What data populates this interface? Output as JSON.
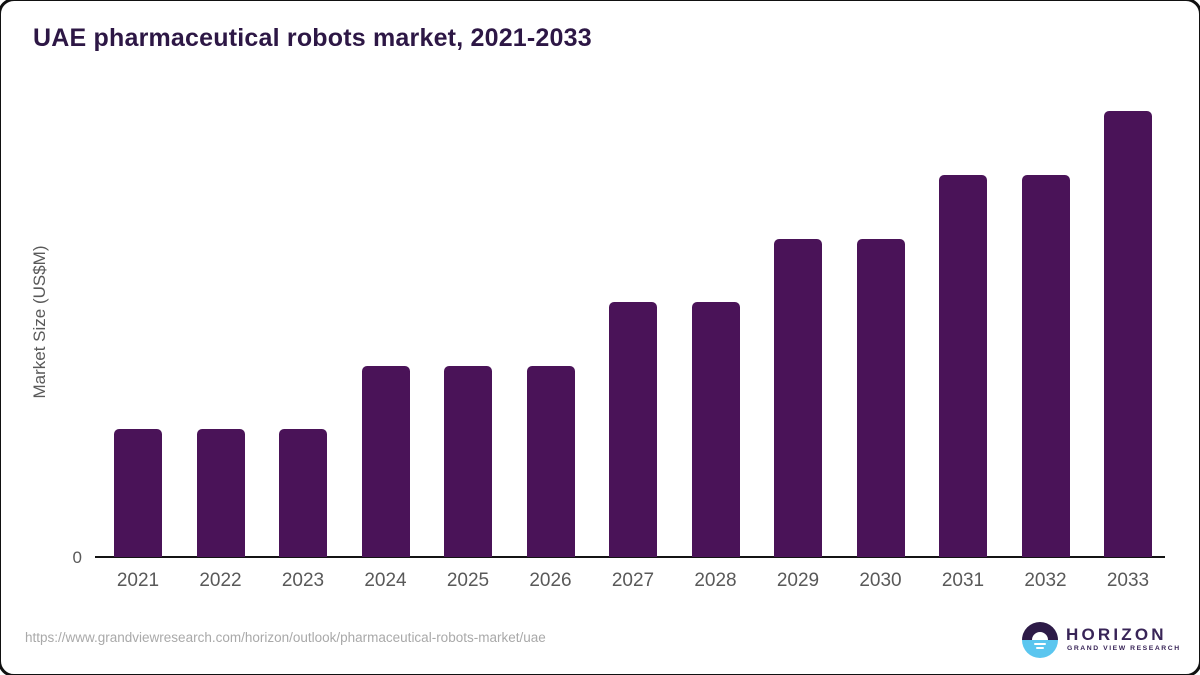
{
  "page": {
    "source_url": "https://www.grandviewresearch.com/horizon/outlook/pharmaceutical-robots-market/uae"
  },
  "chart_data": {
    "type": "bar",
    "title": "UAE pharmaceutical robots market, 2021-2033",
    "ylabel": "Market Size (US$M)",
    "xlabel": "",
    "categories": [
      "2021",
      "2022",
      "2023",
      "2024",
      "2025",
      "2026",
      "2027",
      "2028",
      "2029",
      "2030",
      "2031",
      "2032",
      "2033"
    ],
    "values_relative_pct_of_max": [
      28.6,
      28.6,
      28.6,
      42.9,
      42.9,
      42.9,
      57.1,
      57.1,
      71.4,
      71.4,
      85.7,
      85.7,
      100
    ],
    "y_axis_ticks": [
      "0"
    ],
    "grid": false,
    "legend": false,
    "bar_color": "#4a1358",
    "axis_line_color": "#141414"
  },
  "branding": {
    "logo_name": "HORIZON",
    "logo_subtext": "GRAND VIEW RESEARCH",
    "colors": {
      "logo_dark": "#2d1b47",
      "logo_blue": "#5bc6ef",
      "wordmark_purple": "#382457",
      "title_purple": "#2d1745"
    }
  }
}
